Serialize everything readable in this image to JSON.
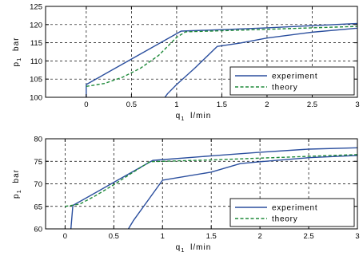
{
  "colors": {
    "experiment": "#2b4f9e",
    "theory": "#1f8a3a",
    "grid": "#000000",
    "axis": "#000000"
  },
  "chart_data": [
    {
      "type": "line",
      "xlim": [
        -0.45,
        3
      ],
      "ylim": [
        100,
        125
      ],
      "xticks": [
        0,
        0.5,
        1,
        1.5,
        2,
        2.5,
        3
      ],
      "xtick_labels": [
        "0",
        "0.5",
        "1",
        "1.5",
        "2",
        "2.5",
        "3"
      ],
      "yticks": [
        100,
        105,
        110,
        115,
        120,
        125
      ],
      "ytick_labels": [
        "100",
        "105",
        "110",
        "115",
        "120",
        "125"
      ],
      "xlabel_main": "q",
      "xlabel_sub": "1",
      "xlabel_unit": "l/min",
      "ylabel_main": "p",
      "ylabel_sub": "1",
      "ylabel_unit": "bar",
      "grid": true,
      "legend_position": "bottom-right",
      "series": [
        {
          "name": "experiment",
          "style": "solid",
          "segments": [
            [
              [
                0,
                100
              ],
              [
                0,
                103.5
              ],
              [
                1.05,
                118.2
              ],
              [
                1.5,
                118.6
              ],
              [
                2.0,
                119.1
              ],
              [
                2.5,
                119.7
              ],
              [
                3.0,
                120.3
              ]
            ],
            [
              [
                0.87,
                100
              ],
              [
                0.9,
                101
              ],
              [
                1.0,
                103.5
              ],
              [
                1.2,
                108
              ],
              [
                1.45,
                114
              ],
              [
                1.7,
                114.9
              ],
              [
                2.0,
                116.3
              ],
              [
                2.5,
                117.9
              ],
              [
                3.0,
                119.0
              ]
            ]
          ]
        },
        {
          "name": "theory",
          "style": "dashed",
          "segments": [
            [
              [
                0,
                103
              ],
              [
                0.2,
                103.8
              ],
              [
                0.4,
                105.5
              ],
              [
                0.6,
                108.0
              ],
              [
                0.8,
                111.5
              ],
              [
                1.0,
                116.5
              ],
              [
                1.1,
                118.0
              ],
              [
                1.5,
                118.3
              ],
              [
                2.0,
                118.7
              ],
              [
                2.5,
                119.1
              ],
              [
                3.0,
                119.5
              ]
            ]
          ]
        }
      ]
    },
    {
      "type": "line",
      "xlim": [
        -0.2,
        3
      ],
      "ylim": [
        60,
        80
      ],
      "xticks": [
        0,
        0.5,
        1,
        1.5,
        2,
        2.5,
        3
      ],
      "xtick_labels": [
        "0",
        "0.5",
        "1",
        "1.5",
        "2",
        "2.5",
        "3"
      ],
      "yticks": [
        60,
        65,
        70,
        75,
        80
      ],
      "ytick_labels": [
        "60",
        "65",
        "70",
        "75",
        "80"
      ],
      "xlabel_main": "q",
      "xlabel_sub": "1",
      "xlabel_unit": "l/min",
      "ylabel_main": "p",
      "ylabel_sub": "1",
      "ylabel_unit": "bar",
      "grid": true,
      "legend_position": "bottom-right",
      "series": [
        {
          "name": "experiment",
          "style": "solid",
          "segments": [
            [
              [
                0.06,
                60
              ],
              [
                0.08,
                65.2
              ],
              [
                0.9,
                75.2
              ],
              [
                1.5,
                76.2
              ],
              [
                2.0,
                77.0
              ],
              [
                2.5,
                77.7
              ],
              [
                3.0,
                78.0
              ]
            ],
            [
              [
                0.65,
                60
              ],
              [
                0.7,
                61.8
              ],
              [
                1.0,
                70.8
              ],
              [
                1.5,
                72.6
              ],
              [
                1.8,
                74.5
              ],
              [
                2.0,
                74.9
              ],
              [
                2.5,
                75.8
              ],
              [
                3.0,
                76.3
              ]
            ]
          ]
        },
        {
          "name": "theory",
          "style": "dashed",
          "segments": [
            [
              [
                0,
                65
              ],
              [
                0.15,
                65.5
              ],
              [
                0.3,
                67.2
              ],
              [
                0.5,
                69.8
              ],
              [
                0.7,
                72.6
              ],
              [
                0.87,
                74.9
              ],
              [
                1.0,
                75.0
              ],
              [
                1.5,
                75.3
              ],
              [
                2.0,
                75.7
              ],
              [
                2.5,
                76.1
              ],
              [
                3.0,
                76.5
              ]
            ]
          ]
        }
      ]
    }
  ]
}
